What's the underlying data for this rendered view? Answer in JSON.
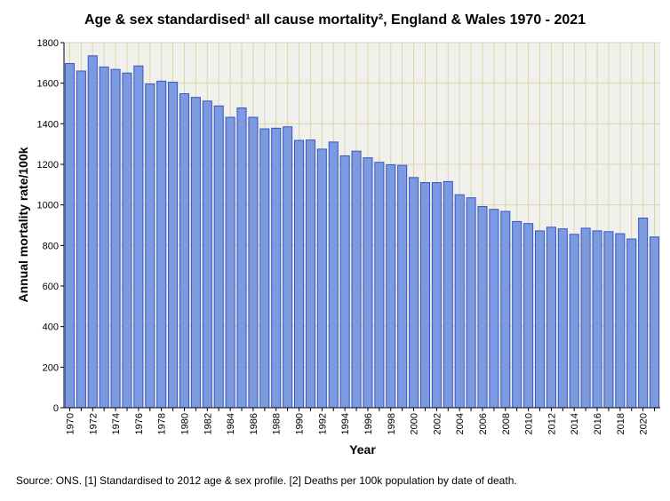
{
  "chart_data": {
    "type": "bar",
    "title": "Age & sex standardised¹ all cause mortality², England & Wales 1970 - 2021",
    "xlabel": "Year",
    "ylabel": "Annual mortality rate/100k",
    "ylim": [
      0,
      1800
    ],
    "yticks": [
      0,
      200,
      400,
      600,
      800,
      1000,
      1200,
      1400,
      1600,
      1800
    ],
    "grid": true,
    "categories": [
      1970,
      1971,
      1972,
      1973,
      1974,
      1975,
      1976,
      1977,
      1978,
      1979,
      1980,
      1981,
      1982,
      1983,
      1984,
      1985,
      1986,
      1987,
      1988,
      1989,
      1990,
      1991,
      1992,
      1993,
      1994,
      1995,
      1996,
      1997,
      1998,
      1999,
      2000,
      2001,
      2002,
      2003,
      2004,
      2005,
      2006,
      2007,
      2008,
      2009,
      2010,
      2011,
      2012,
      2013,
      2014,
      2015,
      2016,
      2017,
      2018,
      2019,
      2020,
      2021
    ],
    "xticks": [
      "1970",
      "1972",
      "1974",
      "1976",
      "1978",
      "1980",
      "1982",
      "1984",
      "1986",
      "1988",
      "1990",
      "1992",
      "1994",
      "1996",
      "1998",
      "2000",
      "2002",
      "2004",
      "2006",
      "2008",
      "2010",
      "2012",
      "2014",
      "2016",
      "2018",
      "2020"
    ],
    "values": [
      1697,
      1660,
      1735,
      1680,
      1668,
      1650,
      1685,
      1596,
      1610,
      1605,
      1548,
      1530,
      1512,
      1488,
      1432,
      1478,
      1432,
      1375,
      1378,
      1385,
      1318,
      1320,
      1275,
      1310,
      1242,
      1265,
      1232,
      1210,
      1198,
      1195,
      1135,
      1110,
      1110,
      1115,
      1050,
      1035,
      992,
      978,
      968,
      918,
      908,
      872,
      890,
      882,
      855,
      885,
      872,
      868,
      858,
      832,
      935,
      842
    ],
    "colors": {
      "bar_fill": "#7b9be0",
      "bar_stroke": "#3a53c8",
      "plot_bg": "#f0f0ec",
      "grid": "#ddd6a8"
    }
  },
  "source_note": "Source: ONS. [1] Standardised to 2012 age & sex profile. [2] Deaths per 100k population by date of death."
}
